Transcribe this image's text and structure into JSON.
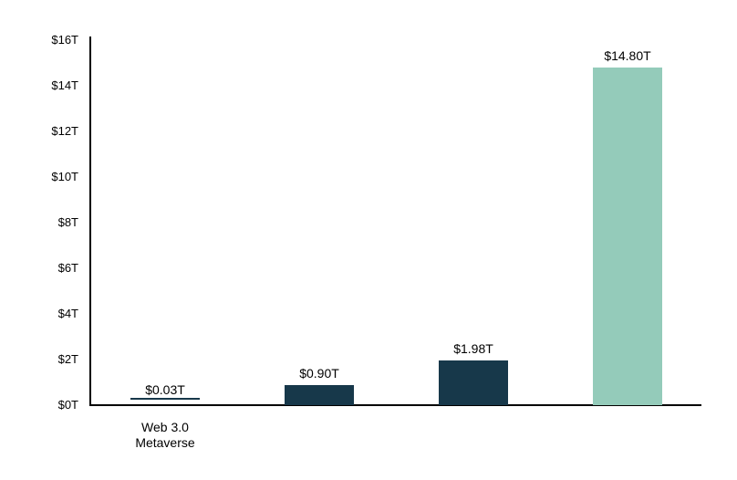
{
  "chart_data": {
    "type": "bar",
    "title": "",
    "xlabel": "",
    "ylabel": "",
    "ylim": [
      0,
      16
    ],
    "grid": false,
    "legend": false,
    "background_color": "#ffffff",
    "axis_color": "#000000",
    "categories": [
      "Web 3.0 Metaverse",
      "",
      "",
      ""
    ],
    "values": [
      0.03,
      0.9,
      1.98,
      14.8
    ],
    "bars": [
      {
        "category_lines": [
          "Web 3.0",
          "Metaverse"
        ],
        "value": 0.03,
        "data_label": "$0.03T",
        "color": "#17384a"
      },
      {
        "category_lines": [],
        "value": 0.9,
        "data_label": "$0.90T",
        "color": "#17384a"
      },
      {
        "category_lines": [],
        "value": 1.98,
        "data_label": "$1.98T",
        "color": "#17384a"
      },
      {
        "category_lines": [],
        "value": 14.8,
        "data_label": "$14.80T",
        "color": "#94cbba"
      }
    ],
    "yticks": [
      {
        "label": "$0T",
        "value": 0
      },
      {
        "label": "$2T",
        "value": 2
      },
      {
        "label": "$4T",
        "value": 4
      },
      {
        "label": "$6T",
        "value": 6
      },
      {
        "label": "$8T",
        "value": 8
      },
      {
        "label": "$10T",
        "value": 10
      },
      {
        "label": "$12T",
        "value": 12
      },
      {
        "label": "$14T",
        "value": 14
      },
      {
        "label": "$16T",
        "value": 16
      }
    ]
  }
}
